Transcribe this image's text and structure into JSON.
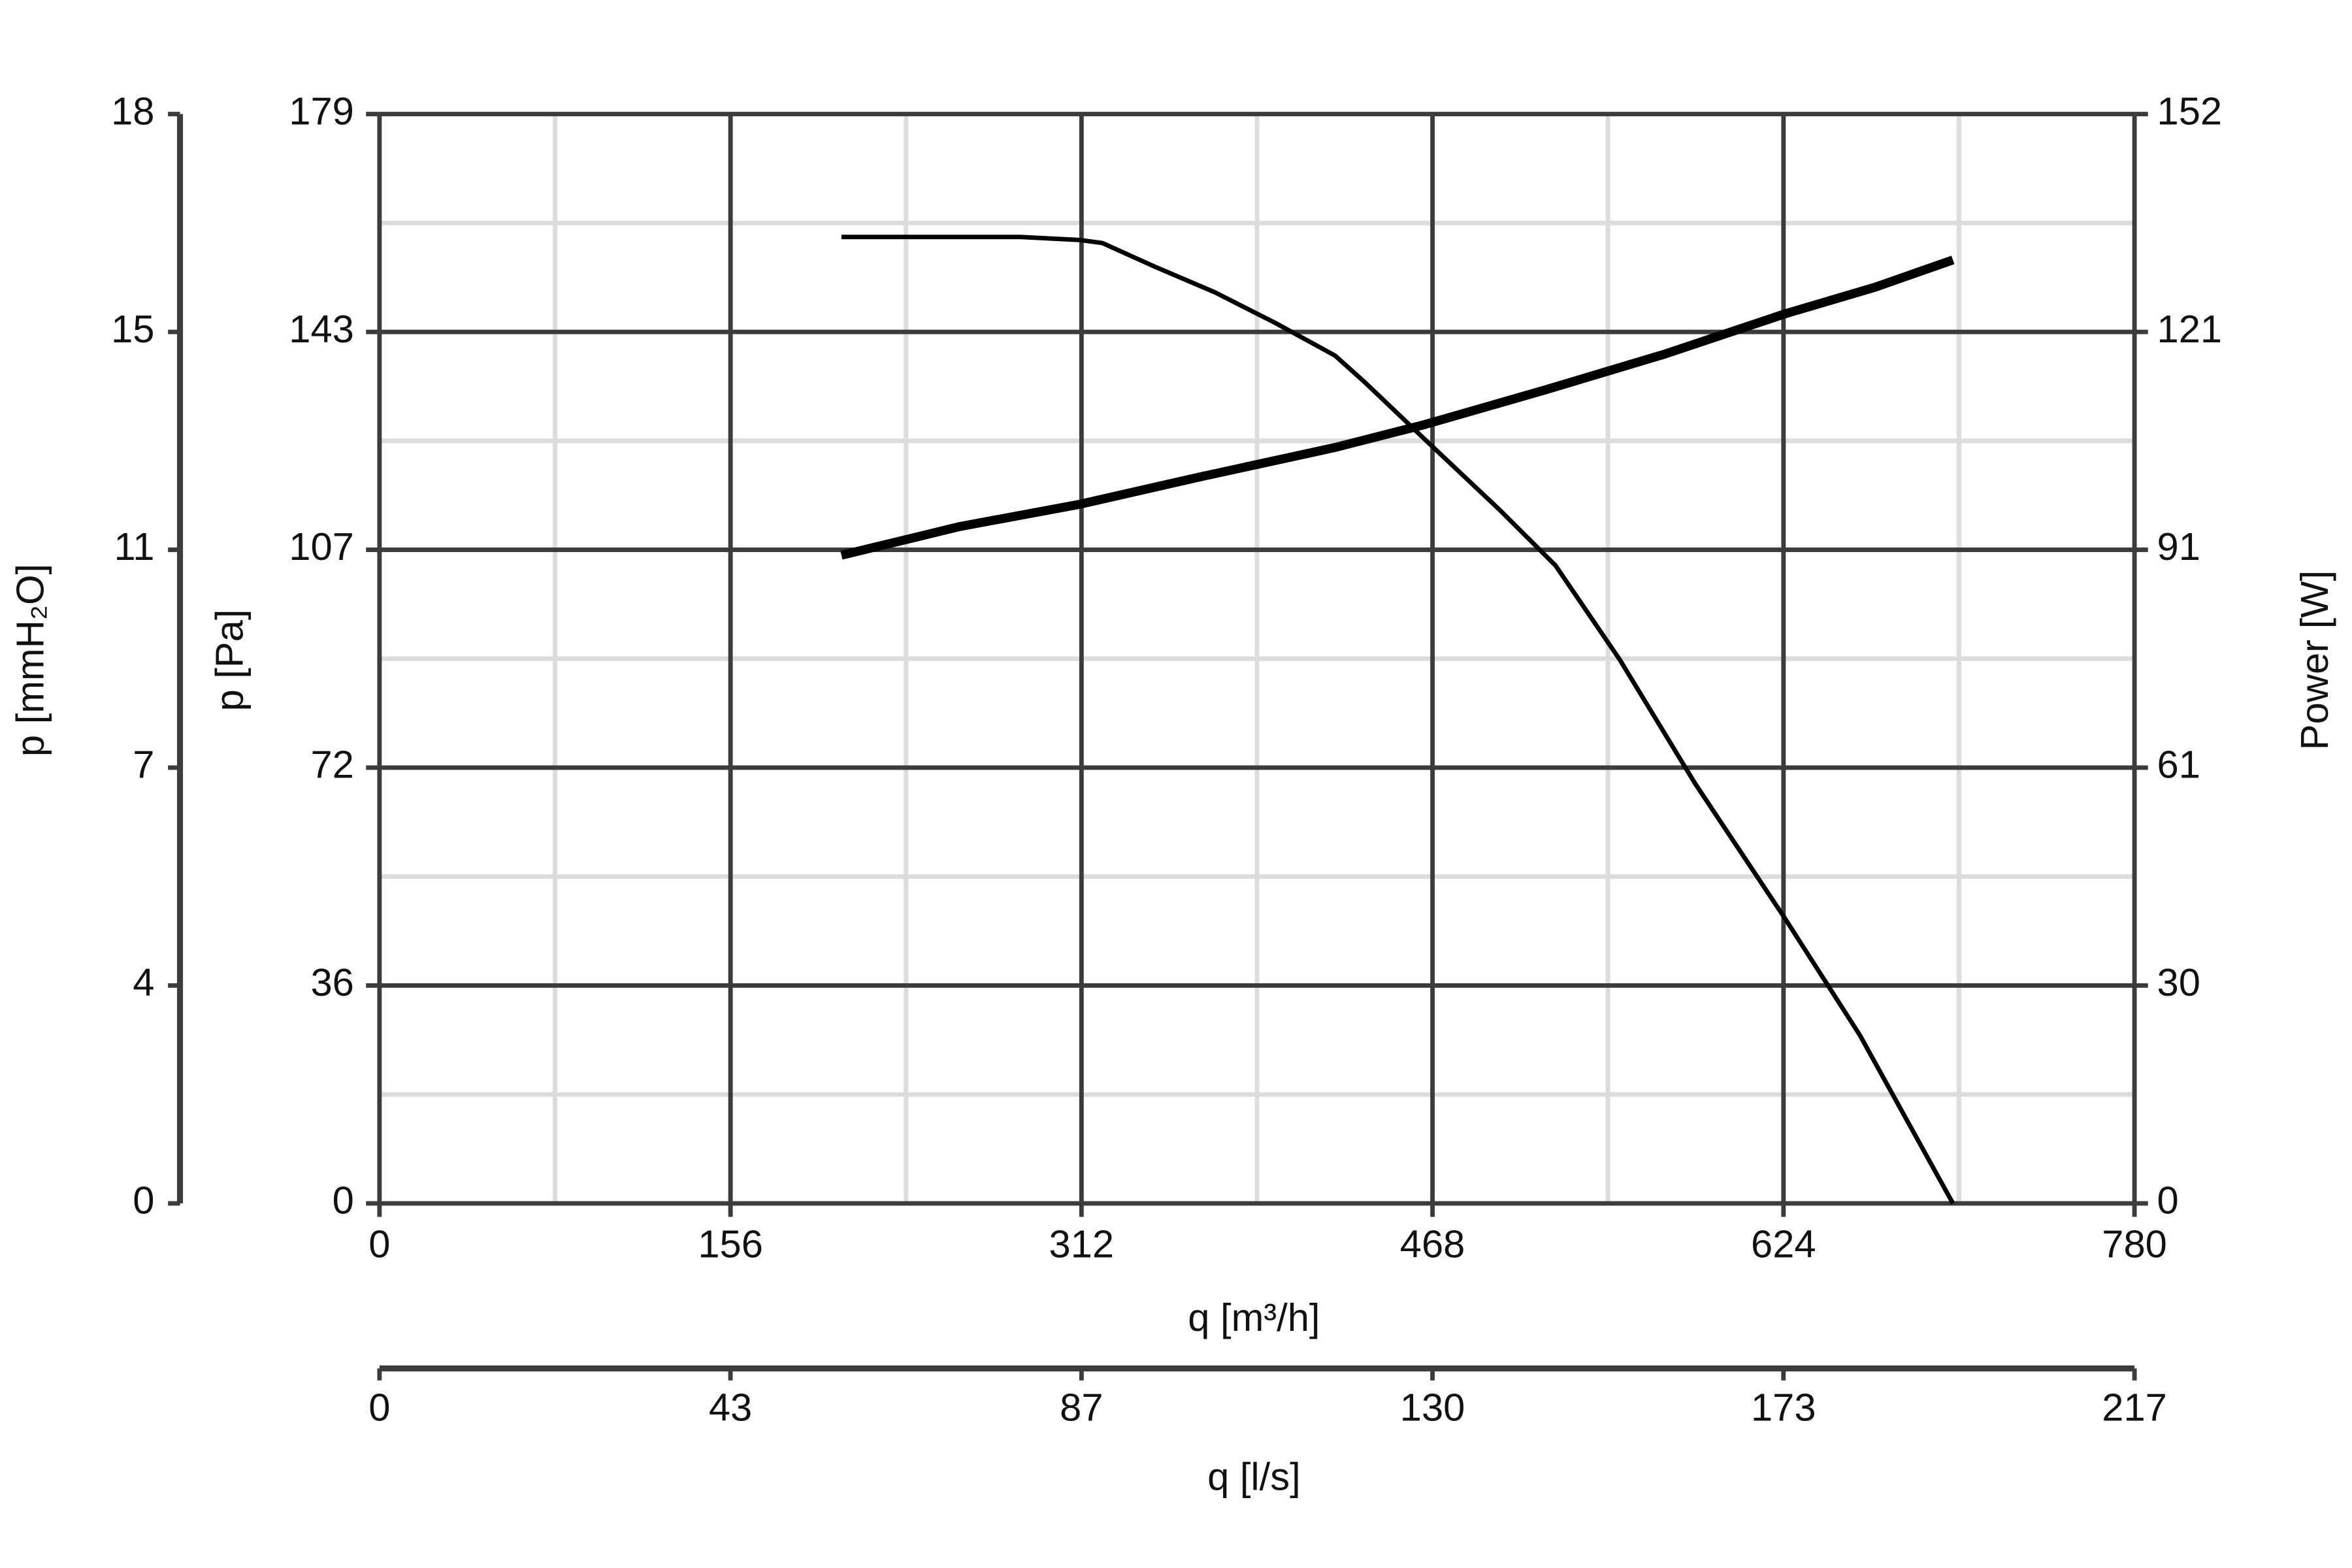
{
  "chart_data": {
    "type": "line",
    "xlabel": "q [m³/h]",
    "ylabel": "p [Pa]",
    "y2label": "Power [W]",
    "y3label": "p [mmH₂O]",
    "x2label": "q [l/s]",
    "xlim": [
      0,
      780
    ],
    "xticks": [
      0,
      156,
      312,
      468,
      624,
      780
    ],
    "xminorticks": [
      78,
      234,
      390,
      546,
      702
    ],
    "ylim": [
      0,
      179
    ],
    "yticks": [
      0,
      {
        "value": 35.8,
        "label": "36"
      },
      {
        "value": 71.6,
        "label": "72"
      },
      {
        "value": 107.4,
        "label": "107"
      },
      {
        "value": 143.2,
        "label": "143"
      },
      179
    ],
    "yminorticks": [
      17.9,
      53.7,
      89.5,
      125.3,
      161.1
    ],
    "y2lim": [
      0,
      151.6
    ],
    "y2ticks": [
      0,
      {
        "value": 30.32,
        "label": "30"
      },
      {
        "value": 60.64,
        "label": "61"
      },
      {
        "value": 90.96,
        "label": "91"
      },
      {
        "value": 121.28,
        "label": "121"
      },
      {
        "value": 151.6,
        "label": "152"
      }
    ],
    "y3lim": [
      0,
      18.25
    ],
    "y3ticks": [
      0,
      {
        "value": 3.65,
        "label": "4"
      },
      {
        "value": 7.3,
        "label": "7"
      },
      {
        "value": 10.95,
        "label": "11"
      },
      {
        "value": 14.6,
        "label": "15"
      },
      {
        "value": 18.25,
        "label": "18"
      }
    ],
    "x2lim": [
      0,
      216.67
    ],
    "x2ticks": [
      0,
      {
        "value": 43.33,
        "label": "43"
      },
      {
        "value": 86.67,
        "label": "87"
      },
      130,
      {
        "value": 173.33,
        "label": "173"
      },
      {
        "value": 216.67,
        "label": "217"
      }
    ],
    "grid": true,
    "series": [
      {
        "name": "p",
        "color": "#000000",
        "x": [
          205.3,
          284.7,
          311.3,
          321.3,
          344.7,
          371.3,
          398,
          424.7,
          438,
          464.7,
          498,
          522.7,
          551.3,
          584.7,
          604.7,
          624.7,
          658,
          699.3
        ],
        "values": [
          158.8,
          158.8,
          158.3,
          157.8,
          153.9,
          149.7,
          144.7,
          139.3,
          134.9,
          125.5,
          113.9,
          104.8,
          89.3,
          69.0,
          57.9,
          46.8,
          27.6,
          0
        ]
      },
      {
        "name": "Power",
        "color": "#000000",
        "axis": "y2",
        "x": [
          205.3,
          258,
          311.3,
          364.7,
          424.7,
          464.7,
          518,
          571.3,
          624.7,
          664.7,
          699.3
        ],
        "values": [
          90.2,
          94.2,
          97.3,
          101.1,
          105.2,
          108.4,
          113.2,
          118.2,
          123.8,
          127.5,
          131.3
        ]
      }
    ]
  }
}
